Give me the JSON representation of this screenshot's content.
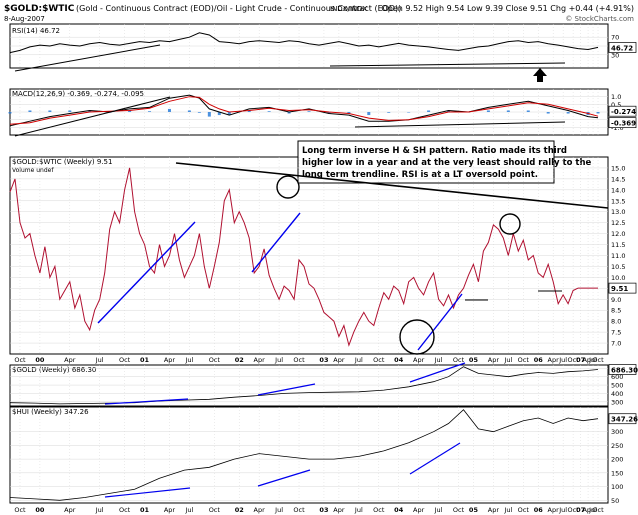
{
  "header": {
    "ticker": "$GOLD:$WTIC",
    "description": "(Gold - Continuous Contract (EOD)/Oil - Light Crude - Continuous Contract (EOD))",
    "exchange": "INDX/INDX",
    "date": "8-Aug-2007",
    "quote": "Open 9.52  High 9.54  Low 9.39  Close 9.51  Chg +0.44 (+4.91%)",
    "credit": "© StockCharts.com"
  },
  "colors": {
    "price": "#b01030",
    "line": "#000000",
    "trend": "#0000ee",
    "macd_signal": "#d00000",
    "macd_hist": "#1f77d8",
    "grid": "#d8d8d8",
    "tag_bg": "#ffffff"
  },
  "annotation": {
    "text_lines": [
      "Long term inverse H & SH pattern. Ratio made its third",
      "higher low in a year and at the very least should rally to the",
      "long term trendline. RSI is at a LT oversold point."
    ]
  },
  "chart_data": [
    {
      "type": "line",
      "panel": "rsi",
      "label": "RSI(14) 46.72",
      "last_tag": "46.72",
      "ylim": [
        0,
        100
      ],
      "yticks": [
        30,
        50,
        70
      ],
      "x": [
        0,
        2,
        4,
        6,
        8,
        10,
        12,
        14,
        16,
        18,
        20,
        22,
        24,
        26,
        28,
        30,
        32,
        34,
        36,
        38,
        40,
        42,
        44,
        46,
        48,
        50,
        52,
        54,
        56,
        58,
        60,
        62,
        64,
        66,
        68,
        70,
        72,
        74,
        76,
        78,
        80,
        82,
        84,
        86,
        88,
        90,
        92,
        94,
        96,
        98,
        100,
        102,
        104,
        106,
        108,
        110,
        112,
        114,
        116,
        118
      ],
      "values": [
        35,
        40,
        48,
        52,
        50,
        55,
        52,
        50,
        55,
        58,
        54,
        52,
        56,
        60,
        58,
        62,
        60,
        65,
        70,
        80,
        75,
        60,
        58,
        55,
        60,
        62,
        60,
        58,
        62,
        60,
        55,
        52,
        56,
        60,
        55,
        50,
        52,
        48,
        52,
        56,
        52,
        50,
        48,
        45,
        42,
        40,
        44,
        48,
        50,
        55,
        60,
        62,
        58,
        60,
        55,
        52,
        48,
        44,
        42,
        46.72
      ]
    },
    {
      "type": "line",
      "panel": "macd",
      "label": "MACD(12,26,9) -0.369, -0.274, -0.095",
      "last_tags": [
        "-0.274",
        "-0.369"
      ],
      "ylim": [
        -1.5,
        1.5
      ],
      "yticks": [
        1.0,
        0.5,
        0.0,
        -0.5,
        -1.0
      ],
      "x": [
        0,
        4,
        8,
        12,
        16,
        20,
        24,
        28,
        32,
        36,
        38,
        40,
        42,
        44,
        48,
        52,
        56,
        60,
        64,
        68,
        72,
        76,
        80,
        84,
        88,
        92,
        96,
        100,
        104,
        108,
        112,
        116,
        118
      ],
      "macd": [
        -0.9,
        -0.6,
        -0.3,
        -0.1,
        0.1,
        0.0,
        0.2,
        0.3,
        0.9,
        1.1,
        0.9,
        0.2,
        0.0,
        -0.2,
        0.2,
        0.3,
        0.0,
        0.2,
        -0.1,
        -0.2,
        -0.6,
        -0.6,
        -0.5,
        -0.2,
        0.1,
        0.0,
        0.3,
        0.5,
        0.7,
        0.4,
        0.1,
        -0.3,
        -0.369
      ],
      "signal": [
        -0.8,
        -0.7,
        -0.4,
        -0.2,
        0.0,
        0.05,
        0.1,
        0.25,
        0.7,
        1.0,
        0.95,
        0.5,
        0.2,
        0.0,
        0.1,
        0.25,
        0.1,
        0.15,
        0.0,
        -0.1,
        -0.4,
        -0.55,
        -0.5,
        -0.3,
        0.0,
        0.0,
        0.2,
        0.4,
        0.6,
        0.5,
        0.2,
        -0.1,
        -0.274
      ]
    },
    {
      "type": "line",
      "panel": "price",
      "label": "$GOLD:$WTIC (Weekly) 9.51",
      "sublabel": "Volume undef",
      "last_tag": "9.51",
      "ylim": [
        6.5,
        15.5
      ],
      "yticks": [
        7.0,
        7.5,
        8.0,
        8.5,
        9.0,
        9.5,
        10.0,
        10.5,
        11.0,
        11.5,
        12.0,
        12.5,
        13.0,
        13.5,
        14.0,
        14.5,
        15.0
      ],
      "x": [
        0,
        1,
        2,
        3,
        4,
        5,
        6,
        7,
        8,
        9,
        10,
        11,
        12,
        13,
        14,
        15,
        16,
        17,
        18,
        19,
        20,
        21,
        22,
        23,
        24,
        25,
        26,
        27,
        28,
        29,
        30,
        31,
        32,
        33,
        34,
        35,
        36,
        37,
        38,
        39,
        40,
        41,
        42,
        43,
        44,
        45,
        46,
        47,
        48,
        49,
        50,
        51,
        52,
        53,
        54,
        55,
        56,
        57,
        58,
        59,
        60,
        61,
        62,
        63,
        64,
        65,
        66,
        67,
        68,
        69,
        70,
        71,
        72,
        73,
        74,
        75,
        76,
        77,
        78,
        79,
        80,
        81,
        82,
        83,
        84,
        85,
        86,
        87,
        88,
        89,
        90,
        91,
        92,
        93,
        94,
        95,
        96,
        97,
        98,
        99,
        100,
        101,
        102,
        103,
        104,
        105,
        106,
        107,
        108,
        109,
        110,
        111,
        112,
        113,
        114,
        115,
        116,
        117,
        118
      ],
      "values": [
        13.9,
        14.5,
        12.5,
        11.8,
        12.0,
        11.0,
        10.2,
        11.4,
        10.0,
        10.5,
        9.0,
        9.4,
        9.8,
        8.6,
        9.2,
        8.0,
        7.6,
        8.5,
        9.0,
        10.2,
        12.2,
        13.0,
        12.5,
        14.0,
        15.0,
        13.0,
        12.0,
        11.5,
        10.5,
        10.2,
        11.5,
        10.5,
        11.0,
        12.0,
        10.8,
        10.0,
        10.5,
        11.0,
        12.0,
        10.5,
        9.5,
        10.5,
        11.6,
        13.5,
        14.0,
        12.5,
        13.0,
        12.5,
        11.8,
        10.2,
        10.5,
        11.3,
        10.1,
        9.5,
        9.0,
        9.6,
        9.4,
        9.0,
        10.8,
        10.5,
        9.7,
        9.5,
        9.0,
        8.4,
        8.2,
        8.0,
        7.3,
        7.8,
        6.9,
        7.5,
        8.0,
        8.4,
        8.0,
        7.8,
        8.6,
        9.3,
        9.0,
        9.6,
        9.4,
        8.8,
        9.8,
        10.0,
        9.5,
        9.2,
        9.8,
        10.2,
        9.0,
        8.7,
        9.2,
        8.6,
        9.2,
        9.5,
        10.1,
        10.6,
        9.8,
        11.2,
        11.6,
        12.4,
        12.2,
        11.8,
        11.0,
        12.0,
        11.2,
        11.7,
        10.8,
        11.0,
        10.2,
        10.0,
        10.6,
        9.8,
        8.8,
        9.2,
        8.8,
        9.4,
        9.51,
        9.51,
        9.51,
        9.51,
        9.51
      ]
    },
    {
      "type": "line",
      "panel": "gold",
      "label": "$GOLD (Weekly) 686.30",
      "last_tag": "686.30",
      "ylim": [
        250,
        740
      ],
      "yticks": [
        300,
        400,
        500,
        600,
        700
      ],
      "x": [
        0,
        5,
        10,
        15,
        20,
        25,
        30,
        35,
        40,
        45,
        50,
        55,
        60,
        65,
        70,
        75,
        80,
        85,
        88,
        91,
        94,
        97,
        100,
        103,
        106,
        109,
        112,
        115,
        118
      ],
      "values": [
        290,
        285,
        275,
        280,
        285,
        290,
        310,
        320,
        330,
        355,
        375,
        400,
        410,
        415,
        420,
        440,
        480,
        540,
        600,
        720,
        640,
        620,
        600,
        630,
        650,
        640,
        660,
        670,
        686.3
      ]
    },
    {
      "type": "line",
      "panel": "hui",
      "label": "$HUI (Weekly) 347.26",
      "last_tag": "347.26",
      "ylim": [
        40,
        390
      ],
      "yticks": [
        50,
        100,
        150,
        200,
        250,
        300
      ],
      "x": [
        0,
        5,
        10,
        15,
        20,
        25,
        30,
        35,
        40,
        45,
        50,
        55,
        60,
        65,
        70,
        75,
        80,
        85,
        88,
        91,
        94,
        97,
        100,
        103,
        106,
        109,
        112,
        115,
        118
      ],
      "values": [
        60,
        55,
        50,
        60,
        75,
        90,
        130,
        160,
        170,
        200,
        220,
        210,
        200,
        200,
        210,
        230,
        260,
        300,
        330,
        380,
        310,
        300,
        320,
        340,
        350,
        330,
        350,
        340,
        347.26
      ]
    }
  ],
  "axis": {
    "ticks": [
      {
        "x": 2,
        "label": "Oct"
      },
      {
        "x": 6,
        "label": "00",
        "bold": true
      },
      {
        "x": 12,
        "label": "Apr"
      },
      {
        "x": 18,
        "label": "Jul"
      },
      {
        "x": 23,
        "label": "Oct"
      },
      {
        "x": 27,
        "label": "01",
        "bold": true
      },
      {
        "x": 32,
        "label": "Apr"
      },
      {
        "x": 36,
        "label": "Jul"
      },
      {
        "x": 41,
        "label": "Oct"
      },
      {
        "x": 46,
        "label": "02",
        "bold": true
      },
      {
        "x": 50,
        "label": "Apr"
      },
      {
        "x": 54,
        "label": "Jul"
      },
      {
        "x": 58,
        "label": "Oct"
      },
      {
        "x": 63,
        "label": "03",
        "bold": true
      },
      {
        "x": 66,
        "label": "Apr"
      },
      {
        "x": 70,
        "label": "Jul"
      },
      {
        "x": 74,
        "label": "Oct"
      },
      {
        "x": 78,
        "label": "04",
        "bold": true
      },
      {
        "x": 82,
        "label": "Apr"
      },
      {
        "x": 86,
        "label": "Jul"
      },
      {
        "x": 90,
        "label": "Oct"
      },
      {
        "x": 93,
        "label": "05",
        "bold": true
      },
      {
        "x": 97,
        "label": "Apr"
      },
      {
        "x": 100,
        "label": "Jul"
      },
      {
        "x": 103,
        "label": "Oct"
      },
      {
        "x": 106,
        "label": "06",
        "bold": true
      },
      {
        "x": 109,
        "label": "Apr"
      },
      {
        "x": 111,
        "label": "Jul"
      },
      {
        "x": 113,
        "label": "Oct"
      },
      {
        "x": 114.5,
        "label": "07",
        "bold": true
      },
      {
        "x": 116,
        "label": "Apr"
      },
      {
        "x": 117,
        "label": "Jul"
      },
      {
        "x": 118,
        "label": "Oct"
      }
    ],
    "x_max": 120
  }
}
